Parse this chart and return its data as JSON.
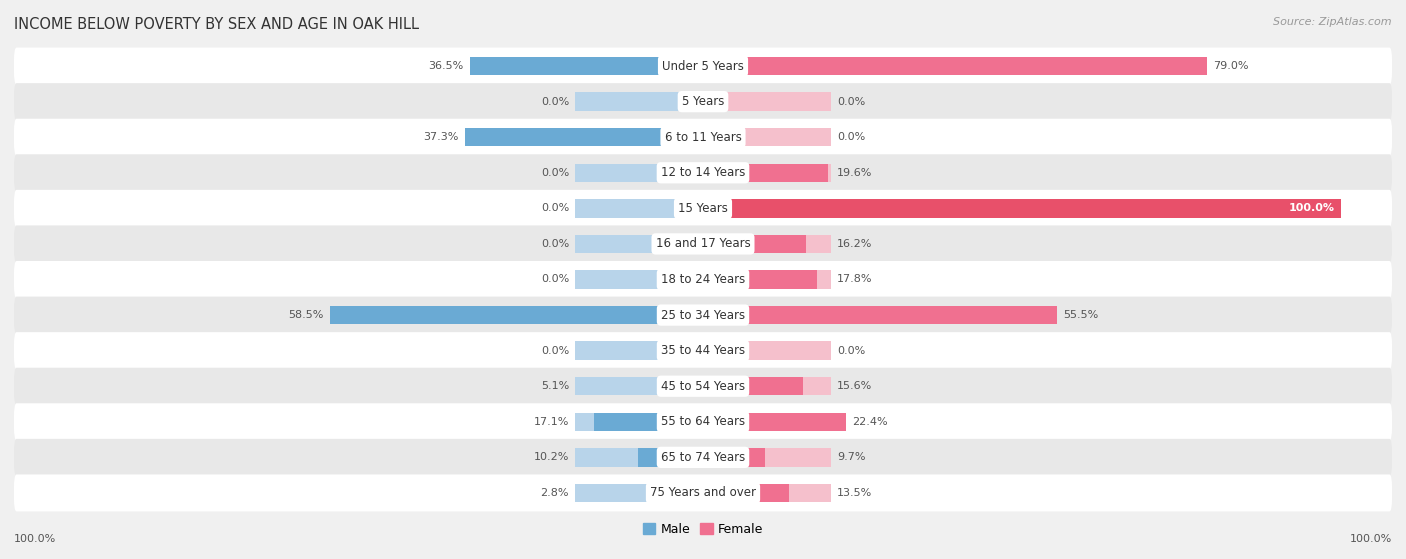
{
  "title": "INCOME BELOW POVERTY BY SEX AND AGE IN OAK HILL",
  "source": "Source: ZipAtlas.com",
  "categories": [
    "Under 5 Years",
    "5 Years",
    "6 to 11 Years",
    "12 to 14 Years",
    "15 Years",
    "16 and 17 Years",
    "18 to 24 Years",
    "25 to 34 Years",
    "35 to 44 Years",
    "45 to 54 Years",
    "55 to 64 Years",
    "65 to 74 Years",
    "75 Years and over"
  ],
  "male": [
    36.5,
    0.0,
    37.3,
    0.0,
    0.0,
    0.0,
    0.0,
    58.5,
    0.0,
    5.1,
    17.1,
    10.2,
    2.8
  ],
  "female": [
    79.0,
    0.0,
    0.0,
    19.6,
    100.0,
    16.2,
    17.8,
    55.5,
    0.0,
    15.6,
    22.4,
    9.7,
    13.5
  ],
  "male_color_light": "#b8d4ea",
  "male_color_dark": "#6aaad4",
  "female_color_light": "#f5c0cc",
  "female_color_dark": "#f07090",
  "female_100_color": "#e8506a",
  "bg_color": "#f0f0f0",
  "row_bg_white": "#ffffff",
  "row_bg_gray": "#e8e8e8",
  "max_val": 100.0,
  "bar_height": 0.52,
  "label_fontsize": 8.0,
  "title_fontsize": 10.5,
  "source_fontsize": 8.0,
  "cat_fontsize": 8.5,
  "legend_fontsize": 9.0
}
